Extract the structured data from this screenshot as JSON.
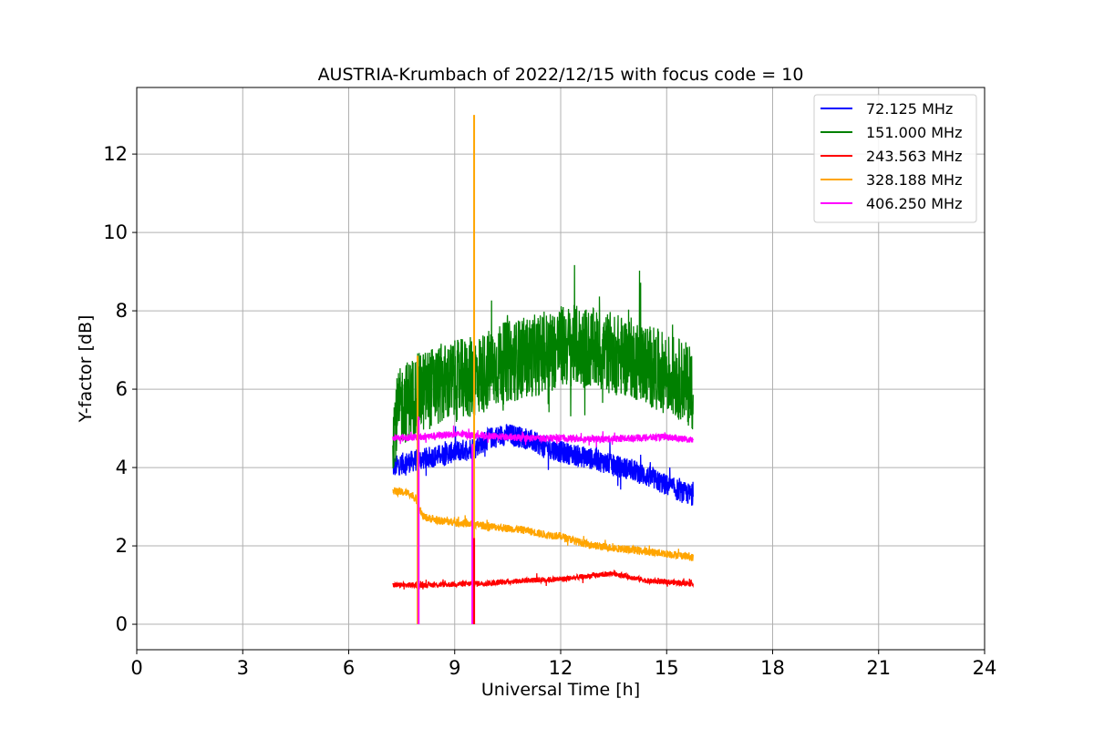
{
  "chart_data": {
    "type": "line",
    "title": "AUSTRIA-Krumbach of 2022/12/15 with focus code = 10",
    "xlabel": "Universal Time [h]",
    "ylabel": "Y-factor [dB]",
    "xlim": [
      0,
      24
    ],
    "ylim": [
      -0.65,
      13.7
    ],
    "xticks": [
      0,
      3,
      6,
      9,
      12,
      15,
      18,
      21,
      24
    ],
    "yticks": [
      0,
      2,
      4,
      6,
      8,
      10,
      12
    ],
    "grid": true,
    "legend_position": "top-right",
    "series": [
      {
        "name": " 72.125 MHz",
        "color": "#0000ff",
        "noise": 0.28,
        "x": [
          7.25,
          7.5,
          8.0,
          8.5,
          9.0,
          9.5,
          10.0,
          10.5,
          11.0,
          11.5,
          12.0,
          12.5,
          13.0,
          13.5,
          14.0,
          14.5,
          15.0,
          15.5,
          15.75
        ],
        "y": [
          4.0,
          4.1,
          4.2,
          4.3,
          4.4,
          4.5,
          4.75,
          4.85,
          4.75,
          4.55,
          4.4,
          4.3,
          4.2,
          4.05,
          3.95,
          3.75,
          3.55,
          3.35,
          3.3
        ]
      },
      {
        "name": "151.000 MHz",
        "color": "#008000",
        "noise": 1.05,
        "x": [
          7.25,
          7.5,
          8.0,
          8.5,
          9.0,
          9.5,
          10.0,
          10.5,
          11.0,
          11.5,
          12.0,
          12.5,
          13.0,
          13.5,
          14.0,
          14.5,
          15.0,
          15.5,
          15.75
        ],
        "y": [
          5.0,
          5.6,
          5.9,
          6.1,
          6.2,
          6.3,
          6.5,
          6.7,
          6.8,
          6.9,
          7.1,
          7.1,
          7.0,
          6.9,
          6.8,
          6.6,
          6.4,
          6.2,
          6.0
        ]
      },
      {
        "name": "243.563 MHz",
        "color": "#ff0000",
        "noise": 0.07,
        "x": [
          7.25,
          8.0,
          9.0,
          10.0,
          11.0,
          12.0,
          13.0,
          13.5,
          14.0,
          14.5,
          15.0,
          15.5,
          15.75
        ],
        "y": [
          1.0,
          1.0,
          1.02,
          1.05,
          1.12,
          1.15,
          1.25,
          1.3,
          1.2,
          1.1,
          1.08,
          1.05,
          1.05
        ]
      },
      {
        "name": "328.188 MHz",
        "color": "#ffa500",
        "noise": 0.1,
        "x": [
          7.25,
          7.7,
          7.9,
          8.1,
          8.5,
          9.0,
          9.5,
          10.0,
          10.5,
          11.0,
          11.5,
          12.0,
          12.5,
          13.0,
          13.5,
          14.0,
          14.5,
          15.0,
          15.5,
          15.75
        ],
        "y": [
          3.4,
          3.35,
          3.2,
          2.75,
          2.65,
          2.6,
          2.55,
          2.5,
          2.45,
          2.4,
          2.3,
          2.25,
          2.1,
          2.0,
          1.95,
          1.9,
          1.85,
          1.8,
          1.75,
          1.7
        ]
      },
      {
        "name": "406.250 MHz",
        "color": "#ff00ff",
        "noise": 0.09,
        "x": [
          7.25,
          8.0,
          9.0,
          10.0,
          11.0,
          12.0,
          13.0,
          14.0,
          15.0,
          15.75
        ],
        "y": [
          4.75,
          4.78,
          4.85,
          4.8,
          4.75,
          4.75,
          4.72,
          4.75,
          4.78,
          4.7
        ]
      }
    ],
    "spikes": [
      {
        "series": 3,
        "x": 7.95,
        "y": [
          0,
          6.85
        ]
      },
      {
        "series": 4,
        "x": 7.98,
        "y": [
          0,
          5.3
        ]
      },
      {
        "series": 3,
        "x": 9.55,
        "y": [
          0,
          13.0
        ]
      },
      {
        "series": 4,
        "x": 9.5,
        "y": [
          0,
          4.6
        ]
      },
      {
        "series": 2,
        "x": 9.55,
        "y": [
          0,
          2.2
        ]
      }
    ]
  }
}
